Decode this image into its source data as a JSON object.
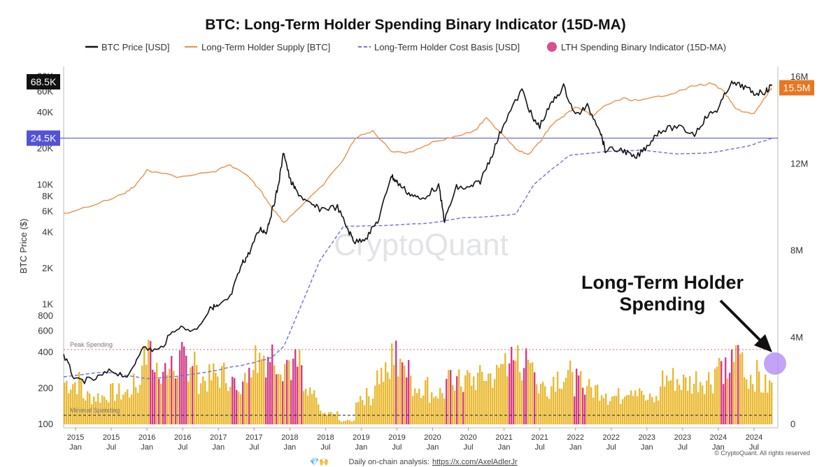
{
  "chart_data": {
    "type": "line",
    "title": "BTC: Long-Term Holder Spending Binary Indicator (15D-MA)",
    "ylabel": "BTC Price ($)",
    "y_scale": "log",
    "ylim": [
      100,
      85000
    ],
    "y2lim": [
      0,
      16000000
    ],
    "y_ticks": [
      "100",
      "200",
      "400",
      "600",
      "800",
      "1K",
      "2K",
      "4K",
      "6K",
      "8K",
      "10K",
      "20K",
      "40K",
      "60K",
      "80K"
    ],
    "y_tick_values": [
      100,
      200,
      400,
      600,
      800,
      1000,
      2000,
      4000,
      6000,
      8000,
      10000,
      20000,
      40000,
      60000,
      80000
    ],
    "y2_ticks": [
      "0",
      "4M",
      "8M",
      "12M",
      "16M"
    ],
    "y2_tick_values": [
      0,
      4000000,
      8000000,
      12000000,
      16000000
    ],
    "x_tick_top": [
      "2015",
      "2015",
      "2016",
      "2016",
      "2017",
      "2017",
      "2018",
      "2018",
      "2019",
      "2019",
      "2020",
      "2020",
      "2021",
      "2021",
      "2022",
      "2022",
      "2023",
      "2023",
      "2024",
      "2024"
    ],
    "x_tick_bottom": [
      "Jan",
      "Jul",
      "Jan",
      "Jul",
      "Jan",
      "Jul",
      "Jan",
      "Jul",
      "Jan",
      "Jul",
      "Jan",
      "Jul",
      "Jan",
      "Jul",
      "Jan",
      "Jul",
      "Jan",
      "Jul",
      "Jan",
      "Jul"
    ],
    "x_tick_dates": [
      "2015-01",
      "2015-07",
      "2016-01",
      "2016-07",
      "2017-01",
      "2017-07",
      "2018-01",
      "2018-07",
      "2019-01",
      "2019-07",
      "2020-01",
      "2020-07",
      "2021-01",
      "2021-07",
      "2022-01",
      "2022-07",
      "2023-01",
      "2023-07",
      "2024-01",
      "2024-07"
    ],
    "x_range": [
      "2014-11",
      "2024-11"
    ],
    "legend": [
      "BTC Price [USD]",
      "Long-Term Holder Supply [BTC]",
      "Long-Term Holder Cost Basis [USD]",
      "LTH Spending Binary Indicator (15D-MA)"
    ],
    "legend_placement": "top",
    "series": [
      {
        "name": "BTC Price [USD]",
        "color": "#111111",
        "axis": "left",
        "points": [
          [
            "2014-11",
            380
          ],
          [
            "2015-01",
            230
          ],
          [
            "2015-04",
            235
          ],
          [
            "2015-07",
            280
          ],
          [
            "2015-10",
            250
          ],
          [
            "2015-12",
            430
          ],
          [
            "2016-03",
            415
          ],
          [
            "2016-06",
            650
          ],
          [
            "2016-09",
            610
          ],
          [
            "2016-12",
            960
          ],
          [
            "2017-01",
            950
          ],
          [
            "2017-03",
            1150
          ],
          [
            "2017-05",
            2200
          ],
          [
            "2017-06",
            2600
          ],
          [
            "2017-08",
            4300
          ],
          [
            "2017-09",
            4000
          ],
          [
            "2017-10",
            6000
          ],
          [
            "2017-11",
            9500
          ],
          [
            "2017-12",
            19000
          ],
          [
            "2018-01",
            11000
          ],
          [
            "2018-02",
            9000
          ],
          [
            "2018-04",
            7000
          ],
          [
            "2018-06",
            6300
          ],
          [
            "2018-09",
            6500
          ],
          [
            "2018-11",
            4000
          ],
          [
            "2018-12",
            3300
          ],
          [
            "2019-02",
            3700
          ],
          [
            "2019-04",
            5200
          ],
          [
            "2019-06",
            12000
          ],
          [
            "2019-07",
            10500
          ],
          [
            "2019-09",
            8500
          ],
          [
            "2019-11",
            7500
          ],
          [
            "2020-02",
            9800
          ],
          [
            "2020-03",
            5000
          ],
          [
            "2020-05",
            9500
          ],
          [
            "2020-07",
            9300
          ],
          [
            "2020-09",
            10700
          ],
          [
            "2020-11",
            18000
          ],
          [
            "2021-01",
            33000
          ],
          [
            "2021-04",
            62000
          ],
          [
            "2021-06",
            34000
          ],
          [
            "2021-07",
            31000
          ],
          [
            "2021-09",
            48000
          ],
          [
            "2021-11",
            66000
          ],
          [
            "2022-01",
            38000
          ],
          [
            "2022-03",
            45000
          ],
          [
            "2022-05",
            30000
          ],
          [
            "2022-06",
            19500
          ],
          [
            "2022-09",
            19500
          ],
          [
            "2022-11",
            16500
          ],
          [
            "2023-01",
            21000
          ],
          [
            "2023-03",
            28000
          ],
          [
            "2023-06",
            30500
          ],
          [
            "2023-09",
            26500
          ],
          [
            "2023-11",
            37000
          ],
          [
            "2024-01",
            43000
          ],
          [
            "2024-03",
            70000
          ],
          [
            "2024-05",
            67000
          ],
          [
            "2024-07",
            58000
          ],
          [
            "2024-09",
            60000
          ],
          [
            "2024-10",
            68500
          ]
        ]
      },
      {
        "name": "Long-Term Holder Supply [BTC]",
        "color": "#e8924a",
        "axis": "right",
        "points": [
          [
            "2014-11",
            9700000
          ],
          [
            "2015-04",
            10100000
          ],
          [
            "2015-09",
            10600000
          ],
          [
            "2015-11",
            11000000
          ],
          [
            "2016-01",
            11700000
          ],
          [
            "2016-06",
            11400000
          ],
          [
            "2016-12",
            11600000
          ],
          [
            "2017-03",
            11950000
          ],
          [
            "2017-06",
            11400000
          ],
          [
            "2017-08",
            10800000
          ],
          [
            "2017-10",
            10000000
          ],
          [
            "2017-12",
            9300000
          ],
          [
            "2018-03",
            10100000
          ],
          [
            "2018-06",
            10850000
          ],
          [
            "2018-10",
            12200000
          ],
          [
            "2018-12",
            13200000
          ],
          [
            "2019-03",
            13500000
          ],
          [
            "2019-06",
            12600000
          ],
          [
            "2019-09",
            12500000
          ],
          [
            "2020-01",
            13000000
          ],
          [
            "2020-04",
            13200000
          ],
          [
            "2020-08",
            13500000
          ],
          [
            "2020-10",
            14100000
          ],
          [
            "2021-01",
            13300000
          ],
          [
            "2021-03",
            12700000
          ],
          [
            "2021-05",
            12400000
          ],
          [
            "2021-07",
            13000000
          ],
          [
            "2021-09",
            13800000
          ],
          [
            "2021-11",
            14200000
          ],
          [
            "2022-01",
            14600000
          ],
          [
            "2022-04",
            14200000
          ],
          [
            "2022-06",
            14700000
          ],
          [
            "2022-09",
            15000000
          ],
          [
            "2022-12",
            14900000
          ],
          [
            "2023-03",
            15100000
          ],
          [
            "2023-06",
            15300000
          ],
          [
            "2023-09",
            15600000
          ],
          [
            "2023-12",
            15700000
          ],
          [
            "2024-02",
            15300000
          ],
          [
            "2024-04",
            14500000
          ],
          [
            "2024-07",
            14300000
          ],
          [
            "2024-09",
            15100000
          ],
          [
            "2024-10",
            15500000
          ]
        ]
      },
      {
        "name": "Long-Term Holder Cost Basis [USD]",
        "color": "#6f6fd8",
        "dashed": true,
        "axis": "left",
        "points": [
          [
            "2014-11",
            250
          ],
          [
            "2015-06",
            275
          ],
          [
            "2016-01",
            240
          ],
          [
            "2016-06",
            250
          ],
          [
            "2017-01",
            285
          ],
          [
            "2017-06",
            320
          ],
          [
            "2017-10",
            360
          ],
          [
            "2017-12",
            450
          ],
          [
            "2018-03",
            1000
          ],
          [
            "2018-06",
            2300
          ],
          [
            "2018-10",
            4500
          ],
          [
            "2019-01",
            4500
          ],
          [
            "2019-06",
            4600
          ],
          [
            "2020-01",
            4800
          ],
          [
            "2020-06",
            5300
          ],
          [
            "2020-12",
            5500
          ],
          [
            "2021-03",
            5700
          ],
          [
            "2021-06",
            10000
          ],
          [
            "2021-09",
            13500
          ],
          [
            "2021-12",
            17500
          ],
          [
            "2022-06",
            19000
          ],
          [
            "2022-12",
            19500
          ],
          [
            "2023-06",
            18000
          ],
          [
            "2023-12",
            18500
          ],
          [
            "2024-06",
            21000
          ],
          [
            "2024-10",
            24500
          ]
        ]
      },
      {
        "name": "LTH Spending Binary Indicator (15D-MA)",
        "color": "#e8b11a",
        "type": "bar",
        "axis": "spending",
        "note": "bars in indicator units 0–1; red/pink = peak spending regime",
        "peak_color": "#d4307f",
        "periods": [
          [
            "2014-11",
            0.6,
            0
          ],
          [
            "2015-02",
            0.4,
            0
          ],
          [
            "2015-06",
            0.45,
            0
          ],
          [
            "2015-10",
            0.55,
            0
          ],
          [
            "2015-12",
            0.95,
            1
          ],
          [
            "2016-02",
            0.8,
            1
          ],
          [
            "2016-06",
            0.9,
            1
          ],
          [
            "2016-09",
            0.65,
            0
          ],
          [
            "2016-12",
            0.7,
            0
          ],
          [
            "2017-03",
            0.6,
            1
          ],
          [
            "2017-06",
            0.95,
            1
          ],
          [
            "2017-08",
            1.0,
            1
          ],
          [
            "2017-11",
            0.9,
            1
          ],
          [
            "2018-01",
            0.85,
            1
          ],
          [
            "2018-03",
            0.4,
            0
          ],
          [
            "2018-06",
            0.15,
            0
          ],
          [
            "2018-09",
            0.05,
            0
          ],
          [
            "2018-12",
            0.4,
            0
          ],
          [
            "2019-03",
            0.7,
            0
          ],
          [
            "2019-06",
            0.95,
            1
          ],
          [
            "2019-09",
            0.55,
            0
          ],
          [
            "2019-12",
            0.45,
            0
          ],
          [
            "2020-03",
            0.6,
            1
          ],
          [
            "2020-06",
            0.65,
            0
          ],
          [
            "2020-09",
            0.7,
            0
          ],
          [
            "2020-12",
            0.85,
            0
          ],
          [
            "2021-01",
            0.95,
            1
          ],
          [
            "2021-03",
            0.9,
            1
          ],
          [
            "2021-06",
            0.55,
            0
          ],
          [
            "2021-09",
            0.7,
            0
          ],
          [
            "2021-12",
            0.6,
            1
          ],
          [
            "2022-03",
            0.5,
            0
          ],
          [
            "2022-06",
            0.4,
            0
          ],
          [
            "2022-09",
            0.55,
            0
          ],
          [
            "2022-12",
            0.35,
            0
          ],
          [
            "2023-03",
            0.65,
            0
          ],
          [
            "2023-06",
            0.6,
            0
          ],
          [
            "2023-09",
            0.65,
            0
          ],
          [
            "2023-12",
            0.8,
            1
          ],
          [
            "2024-03",
            0.95,
            1
          ],
          [
            "2024-05",
            0.7,
            0
          ],
          [
            "2024-08",
            0.55,
            0
          ],
          [
            "2024-10",
            0.6,
            0
          ]
        ]
      }
    ],
    "reference_lines": [
      {
        "label": "Peak Spending",
        "color": "#d96a6a",
        "style": "dotted"
      },
      {
        "label": "Minimal Spending",
        "color": "#222222",
        "style": "dashed"
      },
      {
        "label": "24.5K",
        "value": 24500,
        "color": "#5c5cdc"
      }
    ],
    "price_badges": [
      {
        "label": "68.5K",
        "value": 68500,
        "bg": "#111111"
      },
      {
        "label": "24.5K",
        "value": 24500,
        "bg": "#5353d6"
      },
      {
        "label": "15.5M",
        "value": 15500000,
        "bg": "#e87722"
      }
    ],
    "annotation": {
      "line1": "Long-Term Holder",
      "line2": "Spending"
    },
    "watermark": "CryptoQuant",
    "footer": {
      "prefix": "Daily on-chain analysis:",
      "link": "https://x.com/AxelAdlerJr",
      "emoji": "💎🙌"
    },
    "copyright": "© CryptoQuant. All rights reserved"
  }
}
